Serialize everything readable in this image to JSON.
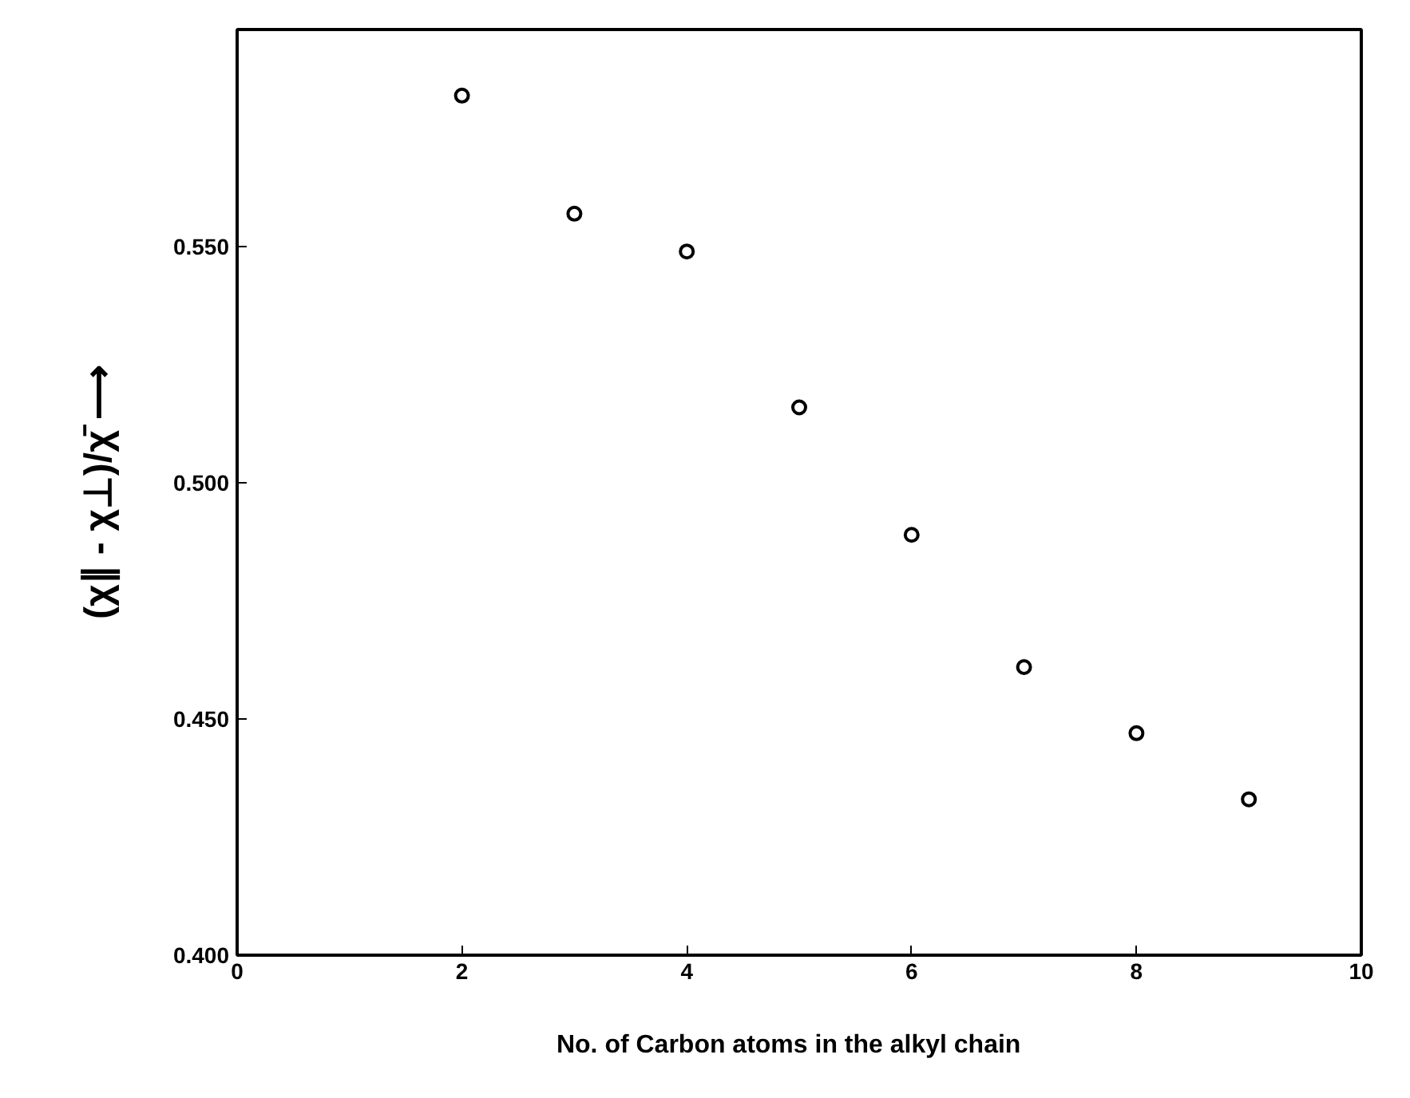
{
  "chart_data": {
    "type": "scatter",
    "xlabel": "No. of Carbon  atoms  in the  alkyl chain",
    "ylabel": "(χ∥ - χ⊥)/χ̄ ⟶",
    "x": [
      2,
      3,
      4,
      5,
      6,
      7,
      8,
      9
    ],
    "series": [
      {
        "color": "#000000",
        "values": [
          0.582,
          0.557,
          0.549,
          0.516,
          0.489,
          0.461,
          0.447,
          0.433
        ]
      }
    ],
    "xlim": [
      0,
      10
    ],
    "xticks": [
      0,
      2,
      4,
      6,
      8,
      10
    ],
    "ylim": [
      0.4,
      0.596
    ],
    "yticks": [
      {
        "value": 0.4,
        "label": "0.400"
      },
      {
        "value": 0.45,
        "label": "0.450"
      },
      {
        "value": 0.5,
        "label": "0.500"
      },
      {
        "value": 0.55,
        "label": "0.550"
      }
    ],
    "marker": "circle",
    "grid": false
  }
}
